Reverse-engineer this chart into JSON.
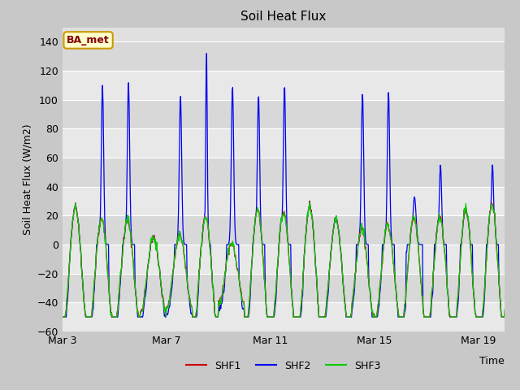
{
  "title": "Soil Heat Flux",
  "ylabel": "Soil Heat Flux (W/m2)",
  "xlabel": "Time",
  "ylim": [
    -60,
    150
  ],
  "yticks": [
    -60,
    -40,
    -20,
    0,
    20,
    40,
    60,
    80,
    100,
    120,
    140
  ],
  "xtick_labels": [
    "Mar 3",
    "Mar 7",
    "Mar 11",
    "Mar 15",
    "Mar 19"
  ],
  "xtick_positions": [
    0,
    4,
    8,
    12,
    16
  ],
  "fig_bg_color": "#c8c8c8",
  "plot_bg_color": "#e0e0e0",
  "band_color_light": "#e8e8e8",
  "band_color_dark": "#d8d8d8",
  "grid_color": "#ffffff",
  "line_colors": {
    "SHF1": "#cc0000",
    "SHF2": "#0000ee",
    "SHF3": "#00cc00"
  },
  "annotation_text": "BA_met",
  "annotation_bg": "#ffffcc",
  "annotation_border": "#cc9900",
  "annotation_text_color": "#880000",
  "n_days": 18,
  "samples_per_day": 48
}
